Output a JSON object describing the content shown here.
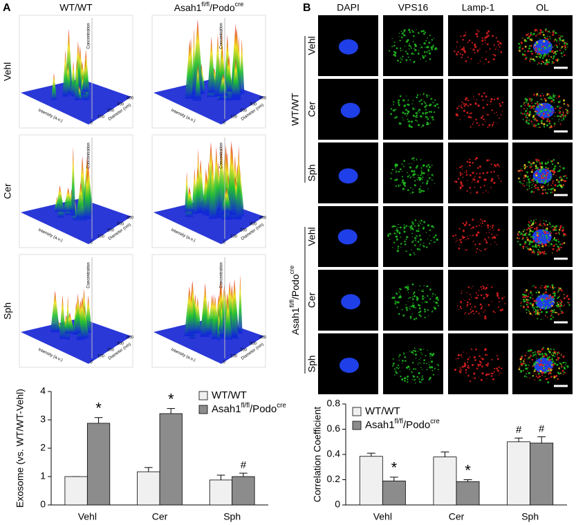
{
  "panel_a": {
    "label": "A",
    "columns": [
      "WT/WT",
      [
        "Asah1",
        "fl/fl",
        "/Podo",
        "cre"
      ]
    ],
    "rows": [
      "Vehl",
      "Cer",
      "Sph"
    ],
    "plot_axes": {
      "z": "Concentration",
      "x": "Diameter (nm)",
      "y": "Intensity (a.u.)",
      "xticks": [
        0,
        100,
        200,
        300,
        400
      ]
    }
  },
  "panel_b": {
    "label": "B",
    "columns": [
      "DAPI",
      "VPS16",
      "Lamp-1",
      "OL"
    ],
    "column_colors": [
      "#1e5fd8",
      "#1aa81a",
      "#e0201a",
      "#222222"
    ],
    "groups": [
      {
        "name": "WT/WT",
        "rows": [
          "Vehl",
          "Cer",
          "Sph"
        ]
      },
      {
        "name": [
          "Asah1",
          "fl/fl",
          "/Podo",
          "cre"
        ],
        "rows": [
          "Vehl",
          "Cer",
          "Sph"
        ]
      }
    ]
  },
  "chart_data": [
    {
      "type": "bar",
      "y_label": "Exosome (vs. WT/WT-Vehl)",
      "categories": [
        "Vehl",
        "Cer",
        "Sph"
      ],
      "series": [
        {
          "name": "WT/WT",
          "color": "#f0f0f0",
          "values": [
            1,
            1.17,
            0.88
          ],
          "errors": [
            0,
            0.15,
            0.17
          ],
          "annotations": [
            null,
            null,
            null
          ]
        },
        {
          "name": [
            "Asah1",
            "fl/fl",
            "/Podo",
            "cre"
          ],
          "color": "#8c8c8c",
          "values": [
            2.88,
            3.22,
            1.0
          ],
          "errors": [
            0.2,
            0.18,
            0.12
          ],
          "annotations": [
            "*",
            "*",
            "#"
          ]
        }
      ],
      "ylim": [
        0,
        4
      ],
      "yticks": [
        0,
        1,
        2,
        3,
        4
      ],
      "legend": "upper right"
    },
    {
      "type": "bar",
      "y_label": "Correlation Coefficient",
      "categories": [
        "Vehl",
        "Cer",
        "Sph"
      ],
      "series": [
        {
          "name": "WT/WT",
          "color": "#f0f0f0",
          "values": [
            0.385,
            0.38,
            0.5
          ],
          "errors": [
            0.025,
            0.04,
            0.03
          ],
          "annotations": [
            null,
            null,
            "#"
          ]
        },
        {
          "name": [
            "Asah1",
            "fl/fl",
            "/Podo",
            "cre"
          ],
          "color": "#8c8c8c",
          "values": [
            0.19,
            0.185,
            0.49
          ],
          "errors": [
            0.03,
            0.015,
            0.05
          ],
          "annotations": [
            "*",
            "*",
            "#"
          ]
        }
      ],
      "ylim": [
        0,
        0.8
      ],
      "yticks": [
        0,
        0.2,
        0.4,
        0.6,
        0.8
      ],
      "legend": "upper left"
    }
  ]
}
